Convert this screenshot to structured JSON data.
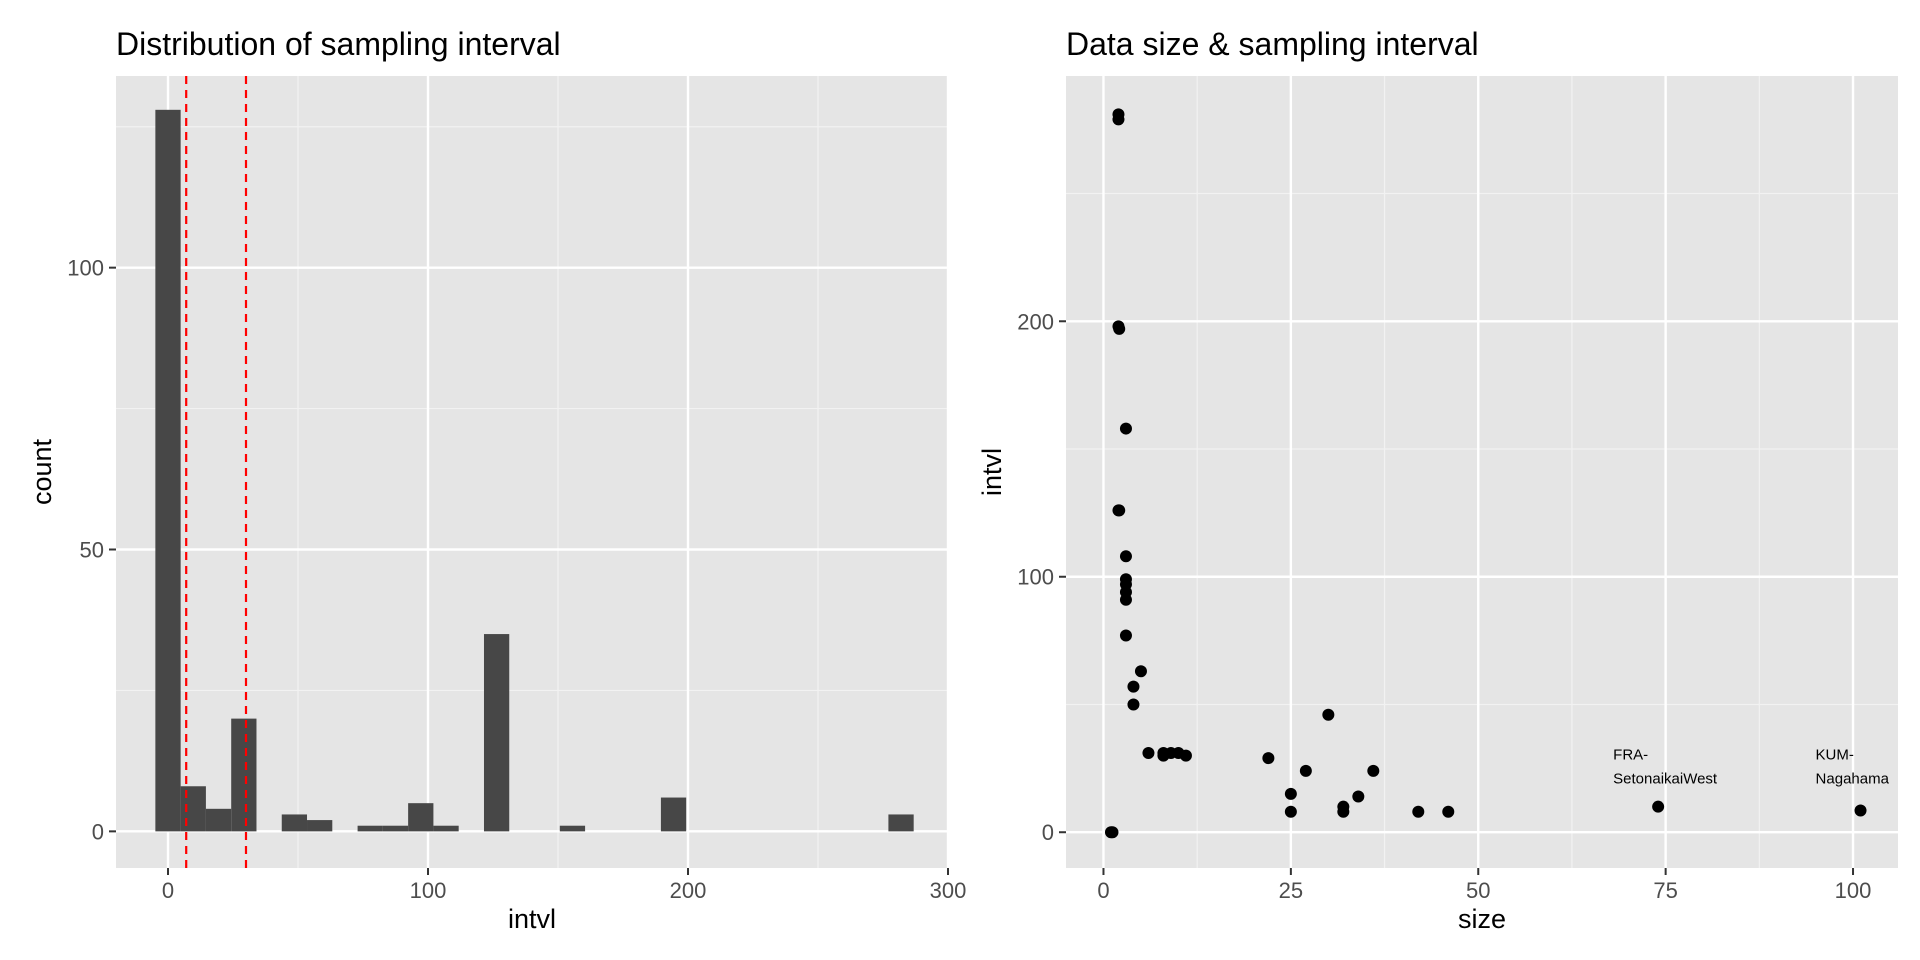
{
  "chart_data": [
    {
      "type": "bar",
      "title": "Distribution of sampling interval",
      "xlabel": "intvl",
      "ylabel": "count",
      "xlim": [
        -20,
        300
      ],
      "ylim": [
        -6.5,
        134
      ],
      "x_ticks": [
        0,
        100,
        200,
        300
      ],
      "x_tick_labels": [
        "0",
        "100",
        "200",
        "300"
      ],
      "x_minor_ticks": [
        50,
        150,
        250
      ],
      "y_ticks": [
        0,
        50,
        100
      ],
      "y_tick_labels": [
        "0",
        "50",
        "100"
      ],
      "y_minor_ticks": [
        25,
        75,
        125
      ],
      "bin_width": 9.72,
      "bins": [
        {
          "x": 0.0,
          "count": 128
        },
        {
          "x": 9.72,
          "count": 8
        },
        {
          "x": 19.44,
          "count": 4
        },
        {
          "x": 29.17,
          "count": 20
        },
        {
          "x": 48.61,
          "count": 3
        },
        {
          "x": 58.33,
          "count": 2
        },
        {
          "x": 77.78,
          "count": 1
        },
        {
          "x": 87.5,
          "count": 1
        },
        {
          "x": 97.22,
          "count": 5
        },
        {
          "x": 106.94,
          "count": 1
        },
        {
          "x": 126.39,
          "count": 35
        },
        {
          "x": 155.56,
          "count": 1
        },
        {
          "x": 194.44,
          "count": 6
        },
        {
          "x": 281.94,
          "count": 3
        }
      ],
      "vlines": [
        7,
        30
      ],
      "vline_color": "#ff0000",
      "bar_color": "#474747",
      "panel_color": "#e5e5e5",
      "grid": true
    },
    {
      "type": "scatter",
      "title": "Data size & sampling interval",
      "xlabel": "size",
      "ylabel": "intvl",
      "xlim": [
        -5,
        106
      ],
      "ylim": [
        -14,
        296
      ],
      "x_ticks": [
        0,
        25,
        50,
        75,
        100
      ],
      "x_tick_labels": [
        "0",
        "25",
        "50",
        "75",
        "100"
      ],
      "x_minor_ticks": [
        12.5,
        37.5,
        62.5,
        87.5
      ],
      "y_ticks": [
        0,
        100,
        200
      ],
      "y_tick_labels": [
        "0",
        "100",
        "200"
      ],
      "y_minor_ticks": [
        50,
        150,
        250
      ],
      "point_color": "#000000",
      "points": [
        {
          "x": 1,
          "y": 0
        },
        {
          "x": 1.2,
          "y": 0
        },
        {
          "x": 2,
          "y": 281
        },
        {
          "x": 2,
          "y": 279
        },
        {
          "x": 2,
          "y": 198
        },
        {
          "x": 2.1,
          "y": 197
        },
        {
          "x": 3,
          "y": 158
        },
        {
          "x": 2,
          "y": 126
        },
        {
          "x": 2.1,
          "y": 126
        },
        {
          "x": 3,
          "y": 108
        },
        {
          "x": 3,
          "y": 99
        },
        {
          "x": 3,
          "y": 97
        },
        {
          "x": 3,
          "y": 94
        },
        {
          "x": 3,
          "y": 91
        },
        {
          "x": 3,
          "y": 77
        },
        {
          "x": 5,
          "y": 63
        },
        {
          "x": 4,
          "y": 57
        },
        {
          "x": 4,
          "y": 50
        },
        {
          "x": 6,
          "y": 31
        },
        {
          "x": 8,
          "y": 31
        },
        {
          "x": 8,
          "y": 30
        },
        {
          "x": 9,
          "y": 31
        },
        {
          "x": 10,
          "y": 31
        },
        {
          "x": 11,
          "y": 30
        },
        {
          "x": 22,
          "y": 29
        },
        {
          "x": 30,
          "y": 46
        },
        {
          "x": 27,
          "y": 24
        },
        {
          "x": 36,
          "y": 24
        },
        {
          "x": 34,
          "y": 14
        },
        {
          "x": 25,
          "y": 15
        },
        {
          "x": 25,
          "y": 8
        },
        {
          "x": 32,
          "y": 10
        },
        {
          "x": 32,
          "y": 8
        },
        {
          "x": 42,
          "y": 8
        },
        {
          "x": 46,
          "y": 8
        },
        {
          "x": 74,
          "y": 10
        },
        {
          "x": 101,
          "y": 8.5
        }
      ],
      "annotations": [
        {
          "x": 68,
          "y": 28.5,
          "lines": [
            "FRA-",
            "SetonaikaiWest"
          ]
        },
        {
          "x": 95,
          "y": 28.5,
          "lines": [
            "KUM-",
            "Nagahama"
          ]
        }
      ],
      "panel_color": "#e5e5e5",
      "grid": true
    }
  ]
}
